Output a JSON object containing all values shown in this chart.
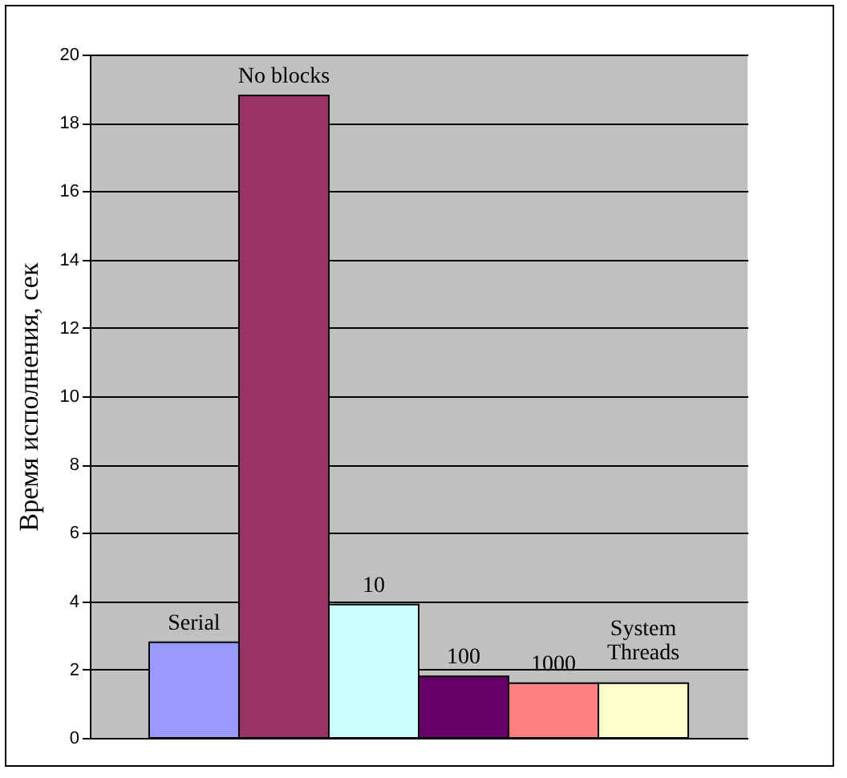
{
  "chart_data": {
    "type": "bar",
    "ylabel": "Время исполнения, сек",
    "categories": [
      "Serial",
      "No blocks",
      "10",
      "100",
      "1000",
      "System Threads"
    ],
    "values": [
      2.8,
      18.8,
      3.9,
      1.8,
      1.6,
      1.6
    ],
    "colors": [
      "#9999ff",
      "#993366",
      "#ccffff",
      "#660066",
      "#ff8080",
      "#ffffcc"
    ],
    "ylim": [
      0,
      20
    ],
    "yticks": [
      0,
      2,
      4,
      6,
      8,
      10,
      12,
      14,
      16,
      18,
      20
    ],
    "grid": "y",
    "tick_labels": "y"
  }
}
